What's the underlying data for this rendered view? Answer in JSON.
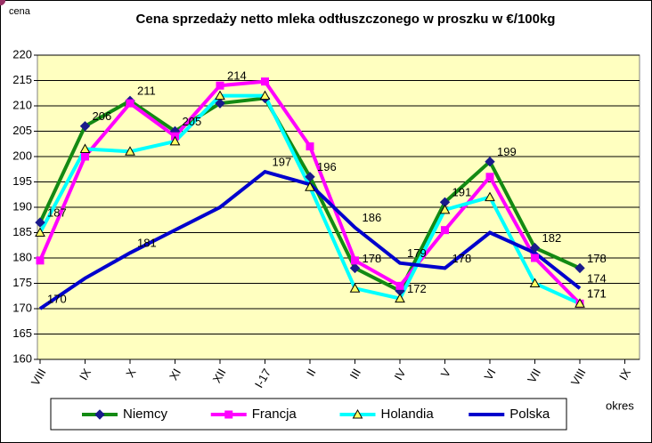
{
  "chart_data": {
    "type": "line",
    "title": "Cena sprzedaży netto mleka odtłuszczonego w proszku w €/100kg",
    "y_label": "cena",
    "x_label": "okres",
    "categories": [
      "VIII",
      "IX",
      "X",
      "XI",
      "XII",
      "I-17",
      "II",
      "III",
      "IV",
      "V",
      "VI",
      "VII",
      "VIII",
      "IX"
    ],
    "ylim": [
      160,
      220
    ],
    "yticks": [
      160,
      165,
      170,
      175,
      180,
      185,
      190,
      195,
      200,
      205,
      210,
      215,
      220
    ],
    "grid": true,
    "legend": "bottom",
    "series": [
      {
        "name": "Niemcy",
        "color": "#138a13",
        "marker": "diamond",
        "marker_color": "#1a1a8c",
        "values": [
          187,
          206,
          211,
          205,
          210.5,
          211.5,
          196,
          178,
          173.5,
          191,
          199,
          182,
          178,
          null
        ],
        "value_labels": [
          "187",
          "206",
          "211",
          "205",
          null,
          null,
          "196",
          "178",
          null,
          "191",
          "199",
          "182",
          "178",
          null
        ]
      },
      {
        "name": "Francja",
        "color": "#ff00ff",
        "marker": "square",
        "marker_color": "#ff00ff",
        "values": [
          179.5,
          200,
          210.5,
          204,
          214,
          214.8,
          202,
          179.5,
          174.5,
          185.5,
          196,
          180,
          171,
          null
        ],
        "value_labels": [
          null,
          null,
          null,
          null,
          "214",
          null,
          null,
          null,
          null,
          null,
          null,
          null,
          "171",
          null
        ]
      },
      {
        "name": "Holandia",
        "color": "#00ffff",
        "marker": "triangle",
        "marker_color": "#ffff66",
        "values": [
          185,
          201.5,
          201,
          203,
          212,
          212,
          194,
          174,
          172,
          189.5,
          192,
          175,
          171,
          null
        ],
        "value_labels": [
          null,
          null,
          null,
          null,
          null,
          null,
          null,
          null,
          "172",
          null,
          null,
          null,
          "171",
          null
        ]
      },
      {
        "name": "Polska",
        "color": "#0000cc",
        "marker": "circle",
        "marker_color": "#993366",
        "values": [
          170,
          176,
          181,
          185.5,
          190,
          197,
          194.5,
          186,
          179,
          178,
          185,
          181,
          174,
          null
        ],
        "value_labels": [
          "170",
          null,
          "181",
          null,
          null,
          "197",
          null,
          "186",
          "179",
          "178",
          null,
          null,
          "174",
          null
        ]
      }
    ]
  }
}
